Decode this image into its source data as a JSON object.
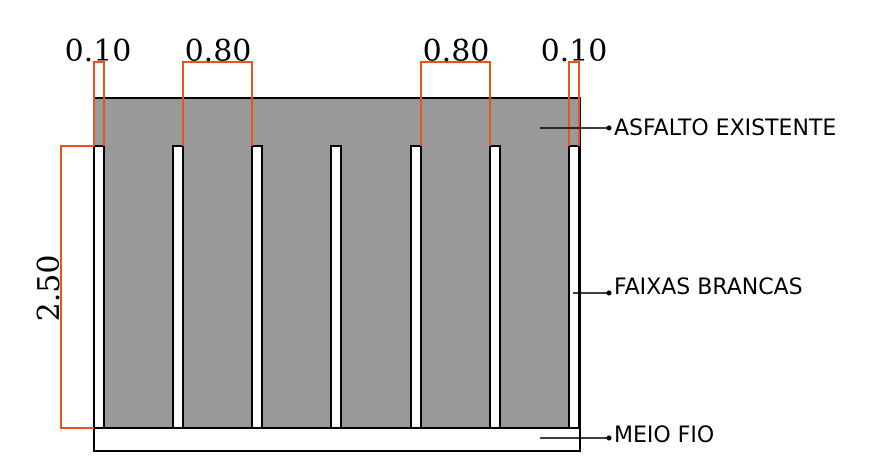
{
  "diagram": {
    "dimensions": {
      "stripe_edge_width": "0.10",
      "gap_left": "0.80",
      "gap_right": "0.80",
      "stripe_edge_width_right": "0.10",
      "stripe_length": "2.50"
    },
    "labels": {
      "asphalt": "ASFALTO EXISTENTE",
      "stripes": "FAIXAS BRANCAS",
      "curb": "MEIO FIO"
    },
    "stripe_count": 7,
    "colors": {
      "asphalt": "#999999",
      "stripe": "#ffffff",
      "dimension_line": "#e8541c",
      "outline": "#000000"
    }
  }
}
